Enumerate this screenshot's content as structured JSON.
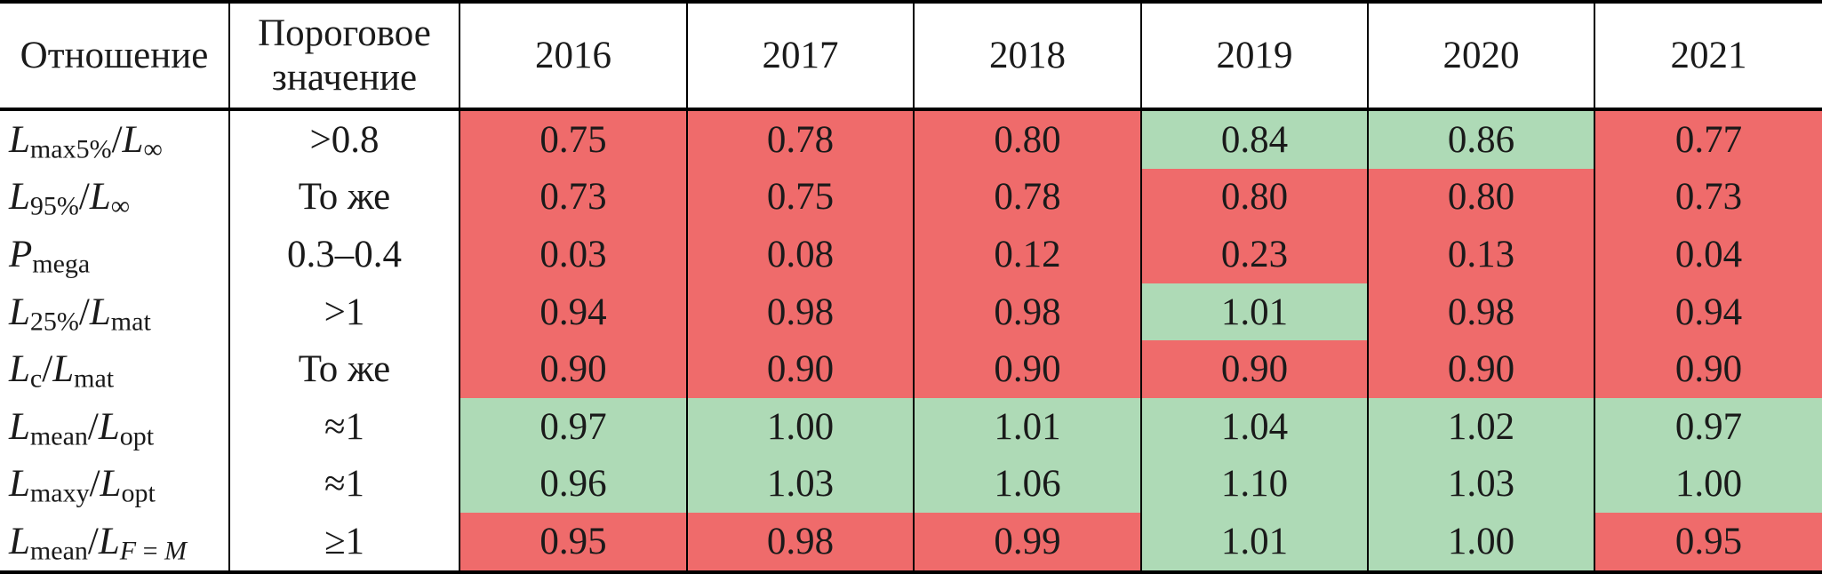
{
  "table": {
    "headers": {
      "ratio": "Отношение",
      "threshold": "Пороговое значение"
    },
    "years": [
      "2016",
      "2017",
      "2018",
      "2019",
      "2020",
      "2021"
    ],
    "colors": {
      "fail": "#EF6B6B",
      "pass": "#AEDAB6",
      "border": "#000000",
      "text": "#1a1a1a"
    },
    "rows": [
      {
        "label": [
          {
            "t": "L",
            "s": "var"
          },
          {
            "t": "max5%",
            "s": "sub"
          },
          {
            "t": "/",
            "s": "plain"
          },
          {
            "t": "L",
            "s": "var"
          },
          {
            "t": "∞",
            "s": "sub"
          }
        ],
        "label_text": "Lmax5%/L∞",
        "threshold": ">0.8",
        "values": [
          "0.75",
          "0.78",
          "0.80",
          "0.84",
          "0.86",
          "0.77"
        ],
        "status": [
          "fail",
          "fail",
          "fail",
          "pass",
          "pass",
          "fail"
        ]
      },
      {
        "label": [
          {
            "t": "L",
            "s": "var"
          },
          {
            "t": "95%",
            "s": "sub"
          },
          {
            "t": "/",
            "s": "plain"
          },
          {
            "t": "L",
            "s": "var"
          },
          {
            "t": "∞",
            "s": "sub"
          }
        ],
        "label_text": "L95%/L∞",
        "threshold": "То же",
        "values": [
          "0.73",
          "0.75",
          "0.78",
          "0.80",
          "0.80",
          "0.73"
        ],
        "status": [
          "fail",
          "fail",
          "fail",
          "fail",
          "fail",
          "fail"
        ]
      },
      {
        "label": [
          {
            "t": "P",
            "s": "var"
          },
          {
            "t": "mega",
            "s": "sub"
          }
        ],
        "label_text": "Pmega",
        "threshold": "0.3–0.4",
        "values": [
          "0.03",
          "0.08",
          "0.12",
          "0.23",
          "0.13",
          "0.04"
        ],
        "status": [
          "fail",
          "fail",
          "fail",
          "fail",
          "fail",
          "fail"
        ]
      },
      {
        "label": [
          {
            "t": "L",
            "s": "var"
          },
          {
            "t": "25%",
            "s": "sub"
          },
          {
            "t": "/",
            "s": "plain"
          },
          {
            "t": "L",
            "s": "var"
          },
          {
            "t": "mat",
            "s": "sub"
          }
        ],
        "label_text": "L25%/Lmat",
        "threshold": ">1",
        "values": [
          "0.94",
          "0.98",
          "0.98",
          "1.01",
          "0.98",
          "0.94"
        ],
        "status": [
          "fail",
          "fail",
          "fail",
          "pass",
          "fail",
          "fail"
        ]
      },
      {
        "label": [
          {
            "t": "L",
            "s": "var"
          },
          {
            "t": "c",
            "s": "sub"
          },
          {
            "t": "/",
            "s": "plain"
          },
          {
            "t": "L",
            "s": "var"
          },
          {
            "t": "mat",
            "s": "sub"
          }
        ],
        "label_text": "Lc/Lmat",
        "threshold": "То же",
        "values": [
          "0.90",
          "0.90",
          "0.90",
          "0.90",
          "0.90",
          "0.90"
        ],
        "status": [
          "fail",
          "fail",
          "fail",
          "fail",
          "fail",
          "fail"
        ]
      },
      {
        "label": [
          {
            "t": "L",
            "s": "var"
          },
          {
            "t": "mean",
            "s": "sub"
          },
          {
            "t": "/",
            "s": "plain"
          },
          {
            "t": "L",
            "s": "var"
          },
          {
            "t": "opt",
            "s": "sub"
          }
        ],
        "label_text": "Lmean/Lopt",
        "threshold": "≈1",
        "values": [
          "0.97",
          "1.00",
          "1.01",
          "1.04",
          "1.02",
          "0.97"
        ],
        "status": [
          "pass",
          "pass",
          "pass",
          "pass",
          "pass",
          "pass"
        ]
      },
      {
        "label": [
          {
            "t": "L",
            "s": "var"
          },
          {
            "t": "maxy",
            "s": "sub"
          },
          {
            "t": "/",
            "s": "plain"
          },
          {
            "t": "L",
            "s": "var"
          },
          {
            "t": "opt",
            "s": "sub"
          }
        ],
        "label_text": "Lmaxy/Lopt",
        "threshold": "≈1",
        "values": [
          "0.96",
          "1.03",
          "1.06",
          "1.10",
          "1.03",
          "1.00"
        ],
        "status": [
          "pass",
          "pass",
          "pass",
          "pass",
          "pass",
          "pass"
        ]
      },
      {
        "label": [
          {
            "t": "L",
            "s": "var"
          },
          {
            "t": "mean",
            "s": "sub"
          },
          {
            "t": "/",
            "s": "plain"
          },
          {
            "t": "L",
            "s": "var"
          },
          {
            "t": "F",
            "s": "subvar"
          },
          {
            "t": " = ",
            "s": "sub"
          },
          {
            "t": "M",
            "s": "subvar"
          }
        ],
        "label_text": "Lmean/LF=M",
        "threshold": "≥1",
        "values": [
          "0.95",
          "0.98",
          "0.99",
          "1.01",
          "1.00",
          "0.95"
        ],
        "status": [
          "fail",
          "fail",
          "fail",
          "pass",
          "pass",
          "fail"
        ]
      }
    ]
  }
}
